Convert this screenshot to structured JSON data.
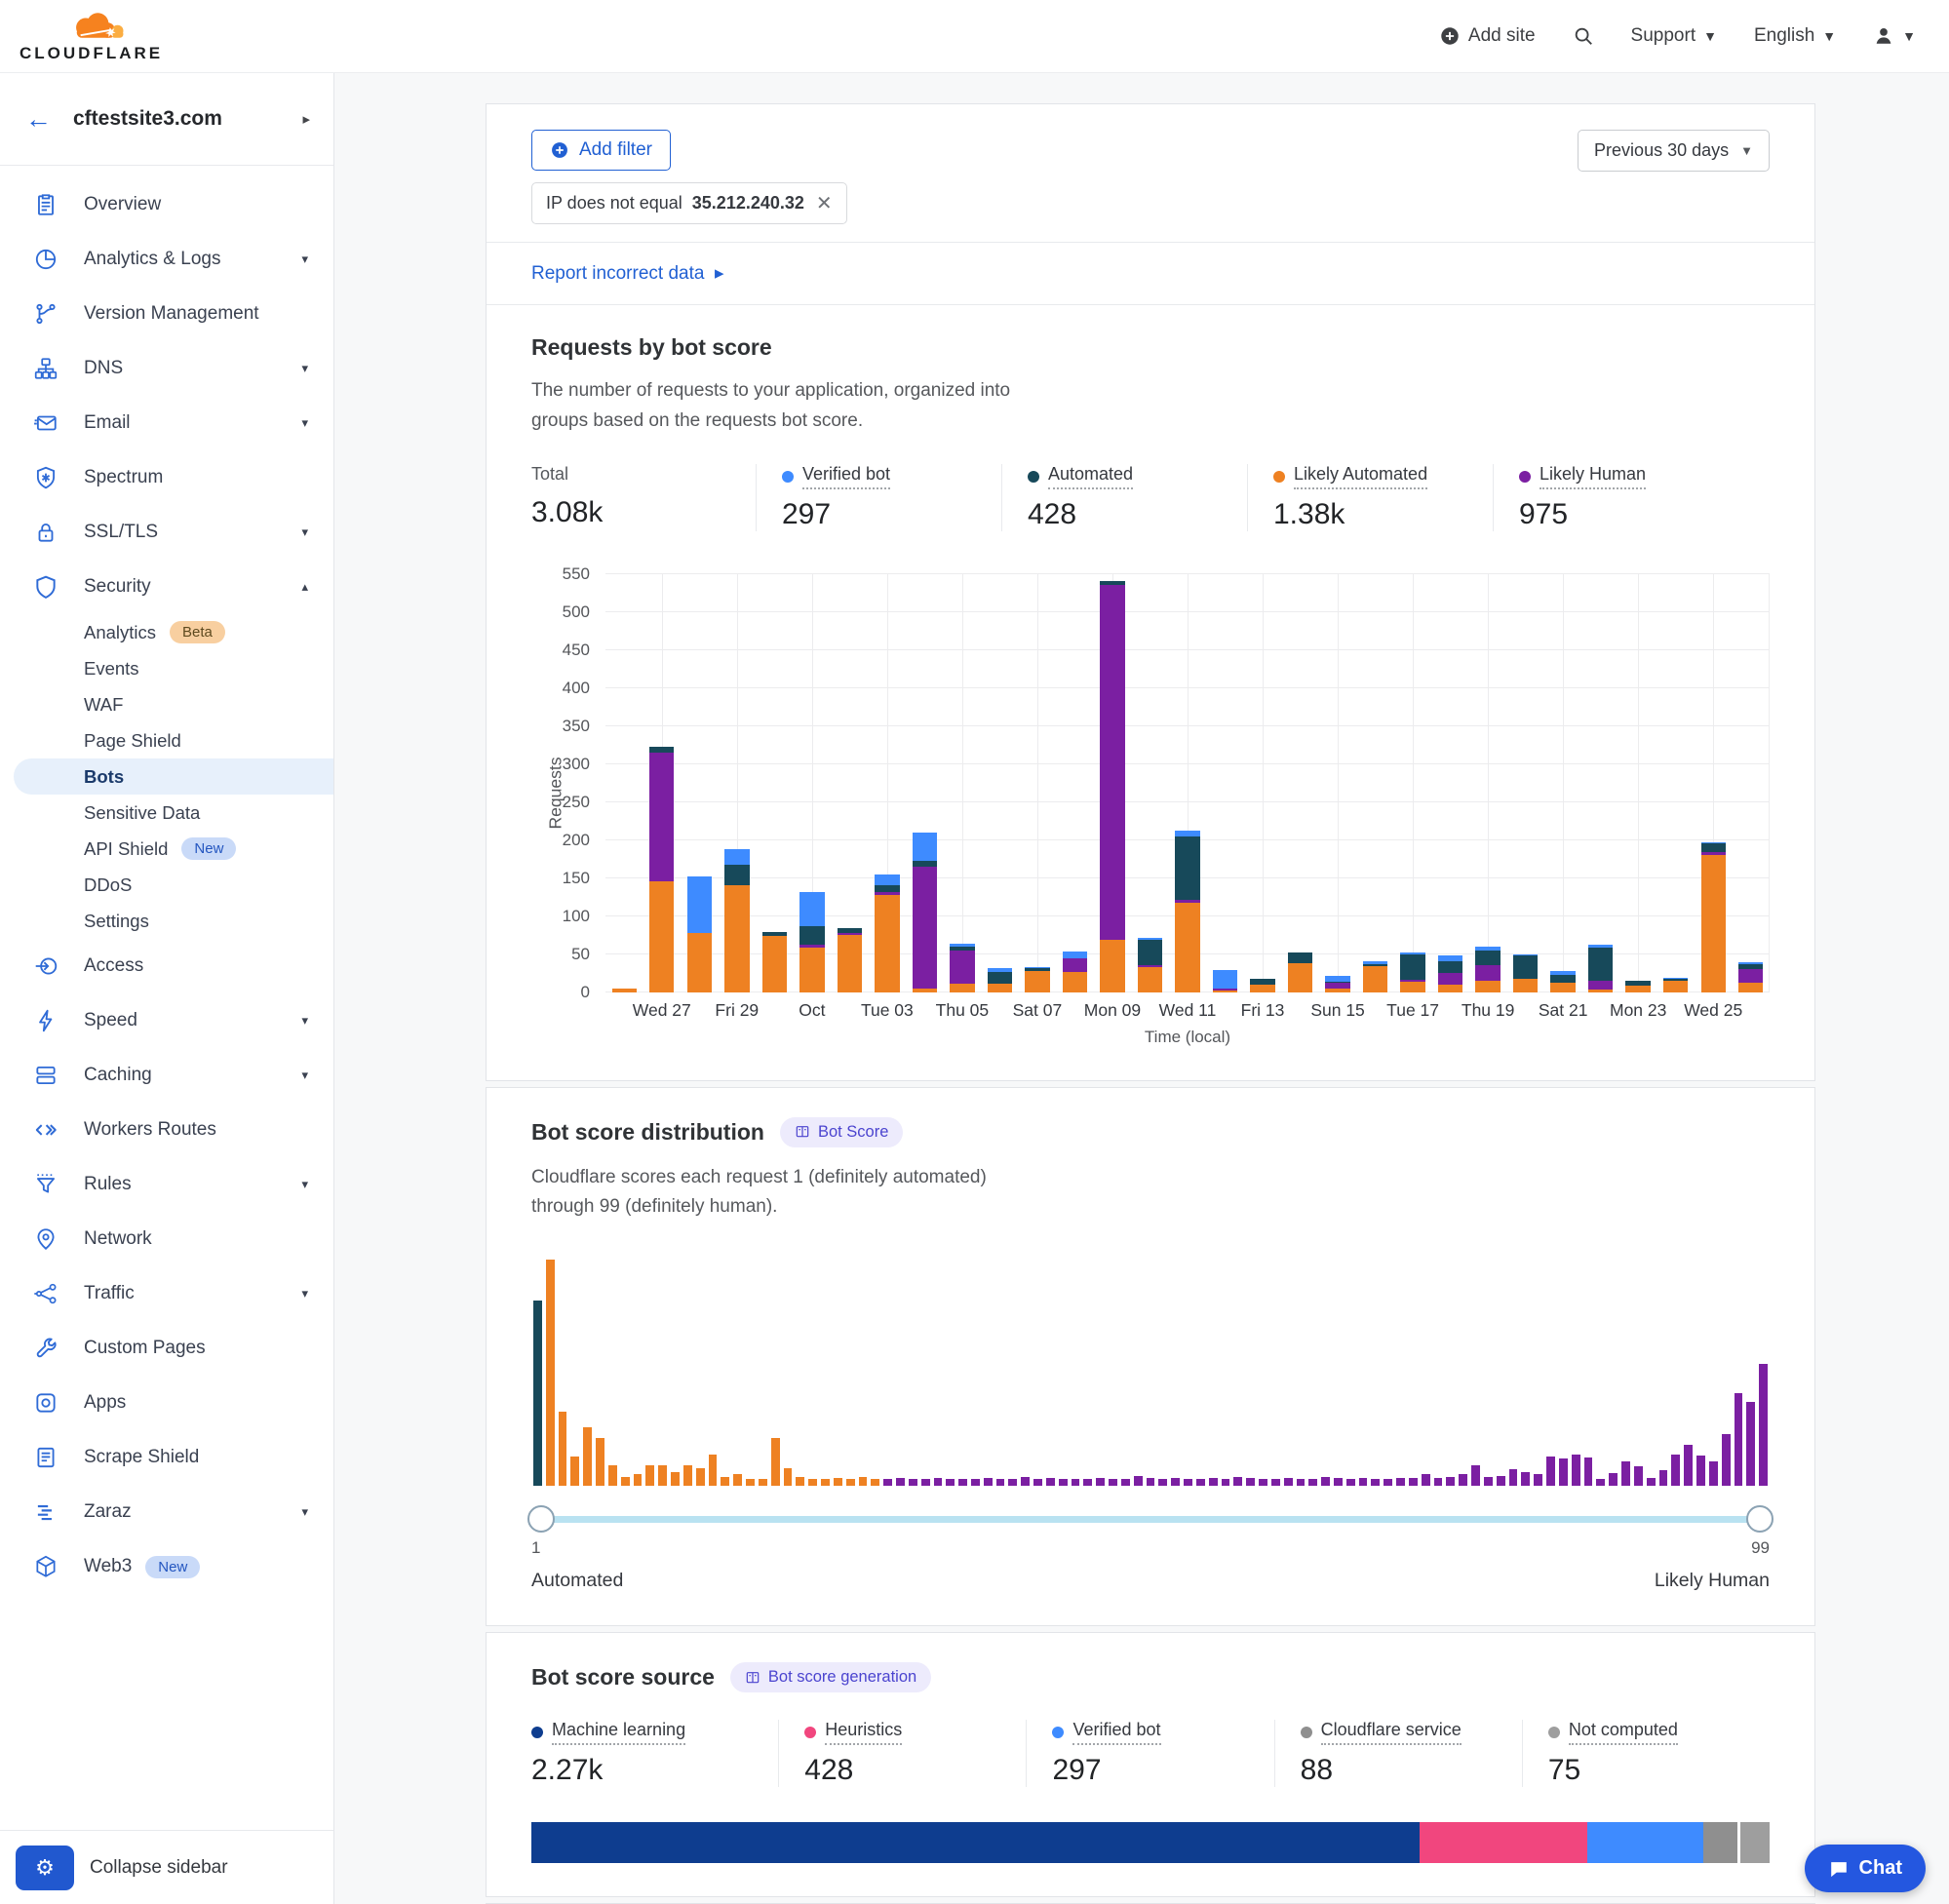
{
  "header": {
    "brand": "CLOUDFLARE",
    "add_site": "Add site",
    "support": "Support",
    "language": "English"
  },
  "sidebar": {
    "site": "cftestsite3.com",
    "collapse_label": "Collapse sidebar",
    "items": [
      {
        "label": "Overview",
        "icon": "clipboard"
      },
      {
        "label": "Analytics & Logs",
        "icon": "pie",
        "caret": "down"
      },
      {
        "label": "Version Management",
        "icon": "branch"
      },
      {
        "label": "DNS",
        "icon": "sitemap",
        "caret": "down"
      },
      {
        "label": "Email",
        "icon": "mail",
        "caret": "down"
      },
      {
        "label": "Spectrum",
        "icon": "shield-star"
      },
      {
        "label": "SSL/TLS",
        "icon": "lock",
        "caret": "down"
      },
      {
        "label": "Security",
        "icon": "shield",
        "caret": "up",
        "sub": [
          {
            "label": "Analytics",
            "badge": {
              "text": "Beta",
              "type": "beta"
            }
          },
          {
            "label": "Events"
          },
          {
            "label": "WAF"
          },
          {
            "label": "Page Shield"
          },
          {
            "label": "Bots",
            "active": true
          },
          {
            "label": "Sensitive Data"
          },
          {
            "label": "API Shield",
            "badge": {
              "text": "New",
              "type": "new"
            }
          },
          {
            "label": "DDoS"
          },
          {
            "label": "Settings"
          }
        ]
      },
      {
        "label": "Access",
        "icon": "arrow-circle"
      },
      {
        "label": "Speed",
        "icon": "bolt",
        "caret": "down"
      },
      {
        "label": "Caching",
        "icon": "layers",
        "caret": "down"
      },
      {
        "label": "Workers Routes",
        "icon": "code"
      },
      {
        "label": "Rules",
        "icon": "funnel",
        "caret": "down"
      },
      {
        "label": "Network",
        "icon": "pin"
      },
      {
        "label": "Traffic",
        "icon": "share",
        "caret": "down"
      },
      {
        "label": "Custom Pages",
        "icon": "wrench"
      },
      {
        "label": "Apps",
        "icon": "app"
      },
      {
        "label": "Scrape Shield",
        "icon": "doc"
      },
      {
        "label": "Zaraz",
        "icon": "zaraz",
        "caret": "down"
      },
      {
        "label": "Web3",
        "icon": "cube",
        "badge": {
          "text": "New",
          "type": "new"
        }
      }
    ]
  },
  "filters": {
    "add_filter": "Add filter",
    "chip_label": "IP does not equal",
    "chip_value": "35.212.240.32",
    "range": "Previous 30 days",
    "report_link": "Report incorrect data"
  },
  "requests_section": {
    "title": "Requests by bot score",
    "desc1": "The number of requests to your application, organized into",
    "desc2": "groups based on the requests bot score.",
    "stats": [
      {
        "label": "Total",
        "value": "3.08k",
        "color": null,
        "underline": false
      },
      {
        "label": "Verified bot",
        "value": "297",
        "color": "#3e8bff"
      },
      {
        "label": "Automated",
        "value": "428",
        "color": "#17495a"
      },
      {
        "label": "Likely Automated",
        "value": "1.38k",
        "color": "#ee8122"
      },
      {
        "label": "Likely Human",
        "value": "975",
        "color": "#7b1fa2"
      }
    ]
  },
  "distribution_section": {
    "title": "Bot score distribution",
    "badge": "Bot Score",
    "desc1": "Cloudflare scores each request 1 (definitely automated)",
    "desc2": "through 99 (definitely human).",
    "slider": {
      "min": "1",
      "max": "99",
      "min_label": "Automated",
      "max_label": "Likely Human"
    }
  },
  "source_section": {
    "title": "Bot score source",
    "badge": "Bot score generation",
    "stats": [
      {
        "label": "Machine learning",
        "value": "2.27k",
        "color": "#0e3d8f"
      },
      {
        "label": "Heuristics",
        "value": "428",
        "color": "#f1467e"
      },
      {
        "label": "Verified bot",
        "value": "297",
        "color": "#3e8bff"
      },
      {
        "label": "Cloudflare service",
        "value": "88",
        "color": "#8f8f8f"
      },
      {
        "label": "Not computed",
        "value": "75",
        "color": "#9e9e9e"
      }
    ]
  },
  "chat_label": "Chat",
  "chart_data": [
    {
      "type": "bar",
      "stacked": true,
      "title": "Requests by bot score",
      "xlabel": "Time (local)",
      "ylabel": "Requests",
      "ylim": [
        0,
        550
      ],
      "ytick_step": 50,
      "grid": true,
      "series_names": [
        "Likely Automated",
        "Likely Human",
        "Automated",
        "Verified bot"
      ],
      "colors": [
        "#ee8122",
        "#7b1fa2",
        "#17495a",
        "#3e8bff"
      ],
      "x_labels": [
        "Wed 27",
        "Fri 29",
        "Oct",
        "Tue 03",
        "Thu 05",
        "Sat 07",
        "Mon 09",
        "Wed 11",
        "Fri 13",
        "Sun 15",
        "Tue 17",
        "Thu 19",
        "Sat 21",
        "Mon 23",
        "Wed 25"
      ],
      "label_indices": [
        1,
        3,
        5,
        7,
        9,
        11,
        13,
        15,
        17,
        19,
        21,
        23,
        25,
        27,
        29
      ],
      "bars": [
        [
          4,
          1,
          0,
          0
        ],
        [
          145,
          170,
          7,
          0
        ],
        [
          78,
          0,
          0,
          74
        ],
        [
          140,
          0,
          28,
          20
        ],
        [
          74,
          0,
          5,
          0
        ],
        [
          59,
          3,
          25,
          44
        ],
        [
          75,
          3,
          6,
          0
        ],
        [
          127,
          4,
          9,
          15
        ],
        [
          4,
          161,
          7,
          38
        ],
        [
          11,
          44,
          5,
          4
        ],
        [
          11,
          0,
          15,
          5
        ],
        [
          27,
          0,
          5,
          1
        ],
        [
          26,
          18,
          0,
          9
        ],
        [
          69,
          466,
          5,
          0
        ],
        [
          33,
          2,
          34,
          2
        ],
        [
          118,
          3,
          84,
          7
        ],
        [
          2,
          3,
          0,
          24
        ],
        [
          10,
          0,
          8,
          0
        ],
        [
          38,
          0,
          14,
          0
        ],
        [
          5,
          7,
          1,
          8
        ],
        [
          34,
          0,
          2,
          4
        ],
        [
          14,
          2,
          34,
          2
        ],
        [
          10,
          15,
          15,
          8
        ],
        [
          15,
          20,
          20,
          5
        ],
        [
          18,
          0,
          30,
          2
        ],
        [
          12,
          0,
          10,
          6
        ],
        [
          3,
          12,
          43,
          4
        ],
        [
          8,
          0,
          7,
          0
        ],
        [
          15,
          0,
          3,
          1
        ],
        [
          180,
          4,
          11,
          2
        ],
        [
          12,
          18,
          6,
          3
        ]
      ]
    },
    {
      "type": "bar",
      "title": "Bot score distribution",
      "x_range": [
        1,
        99
      ],
      "colors": {
        "a": "#17495a",
        "o": "#ee8122",
        "p": "#7b1fa2"
      },
      "legend": {
        "a": "Automated",
        "o": "Likely Automated",
        "p": "Likely Human"
      },
      "bars": [
        [
          82,
          "a"
        ],
        [
          100,
          "o"
        ],
        [
          33,
          "o"
        ],
        [
          13,
          "o"
        ],
        [
          26,
          "o"
        ],
        [
          21,
          "o"
        ],
        [
          9,
          "o"
        ],
        [
          4,
          "o"
        ],
        [
          5,
          "o"
        ],
        [
          9,
          "o"
        ],
        [
          9,
          "o"
        ],
        [
          6,
          "o"
        ],
        [
          9,
          "o"
        ],
        [
          8,
          "o"
        ],
        [
          14,
          "o"
        ],
        [
          4,
          "o"
        ],
        [
          5,
          "o"
        ],
        [
          3,
          "o"
        ],
        [
          3,
          "o"
        ],
        [
          21,
          "o"
        ],
        [
          8,
          "o"
        ],
        [
          4,
          "o"
        ],
        [
          3,
          "o"
        ],
        [
          3,
          "o"
        ],
        [
          3.5,
          "o"
        ],
        [
          3,
          "o"
        ],
        [
          4,
          "o"
        ],
        [
          3,
          "o"
        ],
        [
          3,
          "p"
        ],
        [
          3.5,
          "p"
        ],
        [
          3,
          "p"
        ],
        [
          3,
          "p"
        ],
        [
          3.5,
          "p"
        ],
        [
          3,
          "p"
        ],
        [
          3,
          "p"
        ],
        [
          3,
          "p"
        ],
        [
          3.5,
          "p"
        ],
        [
          3,
          "p"
        ],
        [
          3,
          "p"
        ],
        [
          4,
          "p"
        ],
        [
          3,
          "p"
        ],
        [
          3.5,
          "p"
        ],
        [
          3,
          "p"
        ],
        [
          3,
          "p"
        ],
        [
          3,
          "p"
        ],
        [
          3.5,
          "p"
        ],
        [
          3,
          "p"
        ],
        [
          3,
          "p"
        ],
        [
          4.5,
          "p"
        ],
        [
          3.5,
          "p"
        ],
        [
          3,
          "p"
        ],
        [
          3.5,
          "p"
        ],
        [
          3,
          "p"
        ],
        [
          3,
          "p"
        ],
        [
          3.5,
          "p"
        ],
        [
          3,
          "p"
        ],
        [
          4,
          "p"
        ],
        [
          3.5,
          "p"
        ],
        [
          3,
          "p"
        ],
        [
          3,
          "p"
        ],
        [
          3.5,
          "p"
        ],
        [
          3,
          "p"
        ],
        [
          3,
          "p"
        ],
        [
          4,
          "p"
        ],
        [
          3.5,
          "p"
        ],
        [
          3,
          "p"
        ],
        [
          3.5,
          "p"
        ],
        [
          3,
          "p"
        ],
        [
          3,
          "p"
        ],
        [
          3.5,
          "p"
        ],
        [
          3.5,
          "p"
        ],
        [
          5,
          "p"
        ],
        [
          3.5,
          "p"
        ],
        [
          4,
          "p"
        ],
        [
          5,
          "p"
        ],
        [
          9,
          "p"
        ],
        [
          4,
          "p"
        ],
        [
          4.5,
          "p"
        ],
        [
          7.5,
          "p"
        ],
        [
          6,
          "p"
        ],
        [
          5,
          "p"
        ],
        [
          13,
          "p"
        ],
        [
          12,
          "p"
        ],
        [
          14,
          "p"
        ],
        [
          12.5,
          "p"
        ],
        [
          3,
          "p"
        ],
        [
          5.5,
          "p"
        ],
        [
          11,
          "p"
        ],
        [
          8.5,
          "p"
        ],
        [
          3.5,
          "p"
        ],
        [
          7,
          "p"
        ],
        [
          14,
          "p"
        ],
        [
          18,
          "p"
        ],
        [
          13.5,
          "p"
        ],
        [
          11,
          "p"
        ],
        [
          23,
          "p"
        ],
        [
          41,
          "p"
        ],
        [
          37,
          "p"
        ],
        [
          54,
          "p"
        ]
      ]
    },
    {
      "type": "stacked_bar_horizontal",
      "title": "Bot score source",
      "segments": [
        {
          "label": "Machine learning",
          "value": 2270,
          "pct": 71.9,
          "color": "#0e3d8f"
        },
        {
          "label": "Heuristics",
          "value": 428,
          "pct": 13.6,
          "color": "#f1467e"
        },
        {
          "label": "Verified bot",
          "value": 297,
          "pct": 9.4,
          "color": "#3e8bff"
        },
        {
          "label": "Cloudflare service",
          "value": 88,
          "pct": 2.7,
          "color": "#8f8f8f"
        },
        {
          "label": "Not computed",
          "value": 75,
          "pct": 2.4,
          "color": "#9e9e9e"
        }
      ]
    }
  ]
}
